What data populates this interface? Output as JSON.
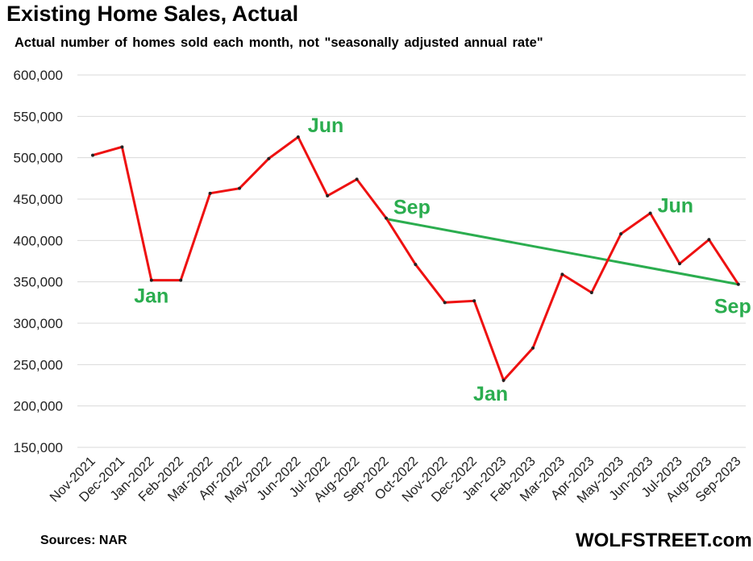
{
  "header": {
    "title": "Existing Home Sales, Actual",
    "subtitle": "Actual number of homes sold each month, not \"seasonally adjusted annual rate\""
  },
  "footer": {
    "source": "Sources: NAR",
    "brand": "WOLFSTREET.com"
  },
  "colors": {
    "series_line": "#ee1111",
    "trend_line": "#2bad4f",
    "annotation": "#2bad4f",
    "gridline": "#d9d9d9"
  },
  "chart_data": {
    "type": "line",
    "title": "Existing Home Sales, Actual",
    "subtitle": "Actual number of homes sold each month, not \"seasonally adjusted annual rate\"",
    "xlabel": "",
    "ylabel": "",
    "ylim": [
      150000,
      600000
    ],
    "yticks": [
      150000,
      200000,
      250000,
      300000,
      350000,
      400000,
      450000,
      500000,
      550000,
      600000
    ],
    "ytick_labels": [
      "150,000",
      "200,000",
      "250,000",
      "300,000",
      "350,000",
      "400,000",
      "450,000",
      "500,000",
      "550,000",
      "600,000"
    ],
    "grid": true,
    "categories": [
      "Nov-2021",
      "Dec-2021",
      "Jan-2022",
      "Feb-2022",
      "Mar-2022",
      "Apr-2022",
      "May-2022",
      "Jun-2022",
      "Jul-2022",
      "Aug-2022",
      "Sep-2022",
      "Oct-2022",
      "Nov-2022",
      "Dec-2022",
      "Jan-2023",
      "Feb-2023",
      "Mar-2023",
      "Apr-2023",
      "May-2023",
      "Jun-2023",
      "Jul-2023",
      "Aug-2023",
      "Sep-2023"
    ],
    "series": [
      {
        "values": [
          503000,
          513000,
          352000,
          352000,
          457000,
          463000,
          499000,
          525000,
          454000,
          474000,
          427000,
          371000,
          325000,
          327000,
          231000,
          270000,
          359000,
          337000,
          408000,
          433000,
          372000,
          401000,
          347000
        ]
      }
    ],
    "trend_line": {
      "from": "Sep-2022",
      "to": "Sep-2023",
      "from_value": 426000,
      "to_value": 347000
    },
    "annotations": [
      {
        "text": "Jan",
        "category": "Jan-2022"
      },
      {
        "text": "Jun",
        "category": "Jun-2022"
      },
      {
        "text": "Sep",
        "category": "Sep-2022"
      },
      {
        "text": "Jan",
        "category": "Jan-2023"
      },
      {
        "text": "Jun",
        "category": "Jun-2023"
      },
      {
        "text": "Sep",
        "category": "Sep-2023"
      }
    ]
  }
}
